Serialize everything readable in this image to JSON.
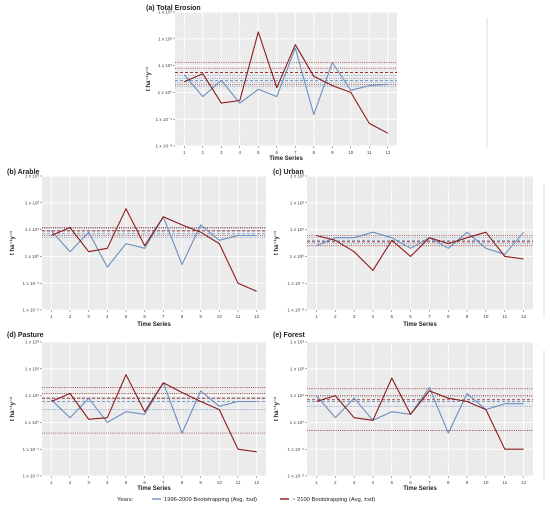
{
  "figure": {
    "legend_prefix": "Years:",
    "legend_items": [
      {
        "label": "1996-2009  Bootstrapping (Avg, ±sd)",
        "color": "#6b8fbf"
      },
      {
        "label": "~ 2100 Bootstrapping (Avg, ±sd)",
        "color": "#8b1a1a"
      }
    ]
  },
  "chart_data": [
    {
      "type": "line",
      "panel": "(a)",
      "title": "Total Erosion",
      "xlabel": "Time Series",
      "ylabel": "t ha⁻¹y⁻¹",
      "log_y": true,
      "ylim_exponent": [
        -2,
        3
      ],
      "y_tick_labels": [
        "1 x 10⁻²",
        "1 x 10⁻¹",
        "1 x 10⁰",
        "1 x 10¹",
        "1 x 10²",
        "1 x 10³"
      ],
      "x": [
        1,
        2,
        3,
        4,
        5,
        6,
        7,
        8,
        9,
        10,
        11,
        12
      ],
      "grid": true,
      "series": [
        {
          "color": "#6b8fbf",
          "values": [
            4.5,
            0.7,
            2.8,
            0.4,
            1.3,
            0.7,
            45,
            0.15,
            13,
            1.2,
            1.8,
            2.0
          ],
          "mean": 2.8,
          "sd_lines": [
            1.7,
            2.4,
            3.3,
            4.2
          ]
        },
        {
          "color": "#8b1a1a",
          "values": [
            2.5,
            5.0,
            0.4,
            0.5,
            180,
            1.5,
            60,
            4.0,
            1.8,
            1.0,
            0.07,
            0.03
          ],
          "mean": 5.5,
          "sd_lines": [
            2.0,
            8.0,
            13.0
          ]
        }
      ]
    },
    {
      "type": "line",
      "panel": "(b)",
      "title": "Arable",
      "xlabel": "Time Series",
      "ylabel": "t ha⁻¹y⁻¹",
      "log_y": true,
      "ylim_exponent": [
        -2,
        3
      ],
      "y_tick_labels": [
        "1 x 10⁻²",
        "1 x 10⁻¹",
        "1 x 10⁰",
        "1 x 10¹",
        "1 x 10²",
        "1 x 10³"
      ],
      "x": [
        1,
        2,
        3,
        4,
        5,
        6,
        7,
        8,
        9,
        10,
        11,
        12
      ],
      "grid": true,
      "series": [
        {
          "color": "#6b8fbf",
          "values": [
            9,
            1.5,
            8,
            0.4,
            3,
            2,
            30,
            0.5,
            15,
            4,
            6,
            6
          ],
          "mean": 7,
          "sd_lines": [
            5,
            9,
            11
          ]
        },
        {
          "color": "#8b1a1a",
          "values": [
            6,
            12,
            1.5,
            2,
            60,
            2.5,
            30,
            15,
            8,
            3,
            0.1,
            0.05
          ],
          "mean": 9,
          "sd_lines": [
            6,
            12
          ]
        }
      ]
    },
    {
      "type": "line",
      "panel": "(c)",
      "title": "Urban",
      "xlabel": "Time Series",
      "ylabel": "t ha⁻¹y⁻¹",
      "log_y": true,
      "ylim_exponent": [
        -2,
        3
      ],
      "y_tick_labels": [
        "1 x 10⁻²",
        "1 x 10⁻¹",
        "1 x 10⁰",
        "1 x 10¹",
        "1 x 10²",
        "1 x 10³"
      ],
      "x": [
        1,
        2,
        3,
        4,
        5,
        6,
        7,
        8,
        9,
        10,
        11,
        12
      ],
      "grid": true,
      "series": [
        {
          "color": "#6b8fbf",
          "values": [
            2.5,
            5,
            5,
            8,
            5,
            2,
            5,
            2,
            8,
            2,
            1.2,
            8
          ],
          "mean": 4,
          "sd_lines": [
            3,
            5
          ]
        },
        {
          "color": "#8b1a1a",
          "values": [
            6,
            4,
            1.5,
            0.3,
            4,
            1.0,
            5,
            3,
            5,
            8,
            1.0,
            0.8
          ],
          "mean": 3.5,
          "sd_lines": [
            2.5,
            6
          ]
        }
      ]
    },
    {
      "type": "line",
      "panel": "(d)",
      "title": "Pasture",
      "xlabel": "Time Series",
      "ylabel": "t ha⁻¹y⁻¹",
      "log_y": true,
      "ylim_exponent": [
        -2,
        3
      ],
      "y_tick_labels": [
        "1 x 10⁻²",
        "1 x 10⁻¹",
        "1 x 10⁰",
        "1 x 10¹",
        "1 x 10²",
        "1 x 10³"
      ],
      "x": [
        1,
        2,
        3,
        4,
        5,
        6,
        7,
        8,
        9,
        10,
        11,
        12
      ],
      "grid": true,
      "series": [
        {
          "color": "#6b8fbf",
          "values": [
            7,
            1.5,
            8,
            1.0,
            2.5,
            2,
            30,
            0.4,
            15,
            4,
            6,
            6
          ],
          "mean": 6,
          "sd_lines": [
            3,
            8
          ]
        },
        {
          "color": "#8b1a1a",
          "values": [
            6,
            12,
            1.3,
            1.5,
            60,
            2.5,
            30,
            13,
            6,
            3,
            0.1,
            0.08
          ],
          "mean": 8,
          "sd_lines": [
            0.4,
            12,
            20
          ]
        }
      ]
    },
    {
      "type": "line",
      "panel": "(e)",
      "title": "Forest",
      "xlabel": "Time Series",
      "ylabel": "t ha⁻¹y⁻¹",
      "log_y": true,
      "ylim_exponent": [
        -2,
        3
      ],
      "y_tick_labels": [
        "1 x 10⁻²",
        "1 x 10⁻¹",
        "1 x 10⁰",
        "1 x 10¹",
        "1 x 10²",
        "1 x 10³"
      ],
      "x": [
        1,
        2,
        3,
        4,
        5,
        6,
        7,
        8,
        9,
        10,
        11,
        12
      ],
      "grid": true,
      "series": [
        {
          "color": "#6b8fbf",
          "values": [
            10,
            1.5,
            8,
            1.2,
            2.5,
            2,
            20,
            0.4,
            12,
            3,
            5,
            5
          ],
          "mean": 6,
          "sd_lines": [
            4,
            9
          ]
        },
        {
          "color": "#8b1a1a",
          "values": [
            6,
            10,
            1.5,
            1.2,
            45,
            2,
            15,
            8,
            6,
            3,
            0.1,
            0.1
          ],
          "mean": 7,
          "sd_lines": [
            0.5,
            10,
            18
          ]
        }
      ]
    }
  ]
}
